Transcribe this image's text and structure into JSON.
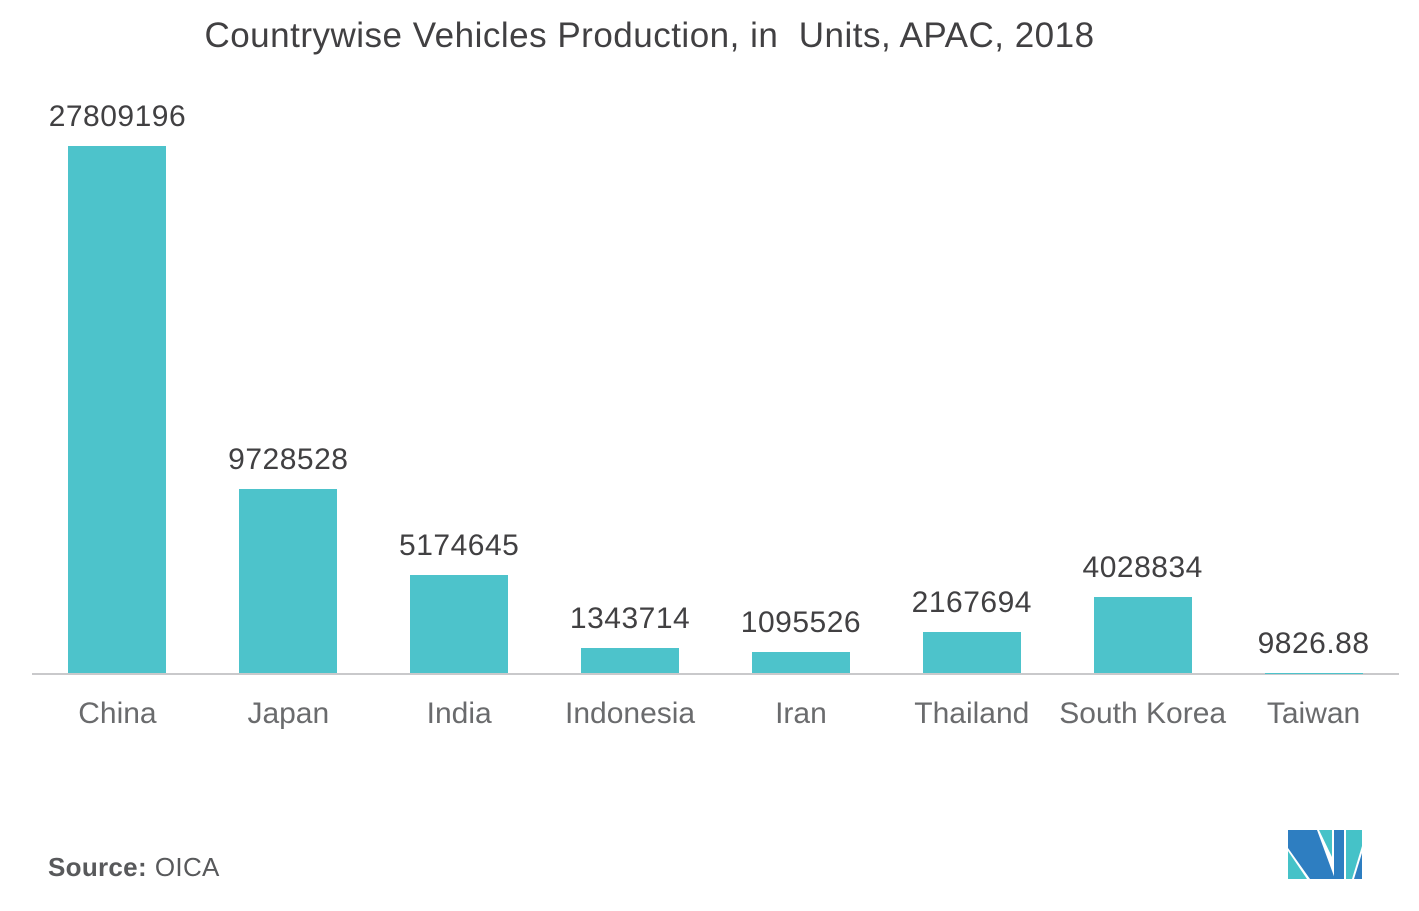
{
  "chart_data": {
    "type": "bar",
    "title": "Countrywise Vehicles Production, in  Units, APAC, 2018",
    "categories": [
      "China",
      "Japan",
      "India",
      "Indonesia",
      "Iran",
      "Thailand",
      "South Korea",
      "Taiwan"
    ],
    "values": [
      27809196,
      9728528,
      5174645,
      1343714,
      1095526,
      2167694,
      4028834,
      9826.88
    ],
    "value_labels": [
      "27809196",
      "9728528",
      "5174645",
      "1343714",
      "1095526",
      "2167694",
      "4028834",
      "9826.88"
    ],
    "xlabel": "",
    "ylabel": "",
    "ylim": [
      0,
      27809196
    ],
    "grid": false,
    "legend": "none",
    "bar_color": "#4DC3CB",
    "axis_line_color": "#C9C9CB",
    "title_color": "#414042",
    "value_label_color": "#414042",
    "category_label_color": "#6A6B6D"
  },
  "source": {
    "label": "Source:",
    "value": "OICA"
  },
  "logo": {
    "name": "mordor-intelligence-logo",
    "blue": "#2E7EC1",
    "teal": "#45C2C8"
  }
}
